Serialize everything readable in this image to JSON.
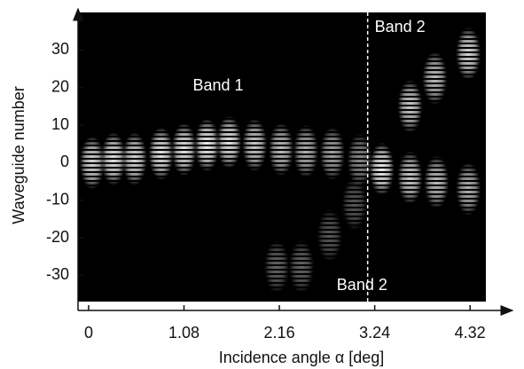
{
  "chart_data": {
    "type": "scatter",
    "xlabel": "Incidence angle  α [deg]",
    "ylabel": "Waveguide number",
    "x": [
      0.04,
      0.28,
      0.52,
      0.82,
      1.08,
      1.34,
      1.59,
      1.88,
      2.18,
      2.46,
      2.76,
      3.07,
      3.32,
      3.64,
      3.92,
      4.3,
      3.64,
      3.94,
      4.3,
      2.13,
      2.41,
      2.73,
      3.01
    ],
    "y": [
      0,
      1,
      1,
      2.4,
      3.5,
      4.7,
      5.4,
      4.7,
      3.5,
      3,
      2.4,
      0.7,
      -1.7,
      15,
      22.5,
      29,
      -4,
      -5.2,
      -7,
      -27.7,
      -27.7,
      -19.4,
      -11
    ],
    "intensity": [
      0.85,
      0.9,
      0.85,
      0.9,
      0.9,
      0.95,
      0.9,
      0.8,
      0.75,
      0.7,
      0.65,
      0.55,
      0.95,
      0.8,
      0.75,
      0.85,
      0.8,
      0.75,
      0.7,
      0.4,
      0.4,
      0.35,
      0.35
    ],
    "xlim": [
      -0.12,
      4.8
    ],
    "xticks": [
      0,
      1.08,
      2.16,
      3.24,
      4.32
    ],
    "ylim": [
      -37,
      40
    ],
    "yticks": [
      -30,
      -20,
      -10,
      0,
      10,
      20,
      30
    ],
    "vline_x": 3.16,
    "background": "#000000",
    "color": "#ffffff",
    "annotations": [
      {
        "text": "Band 1",
        "x": 1.18,
        "y": 20.3
      },
      {
        "text": "Band 2",
        "x": 3.24,
        "y": 35.9
      },
      {
        "text": "Band 2",
        "x": 2.81,
        "y": -32.8
      }
    ]
  }
}
